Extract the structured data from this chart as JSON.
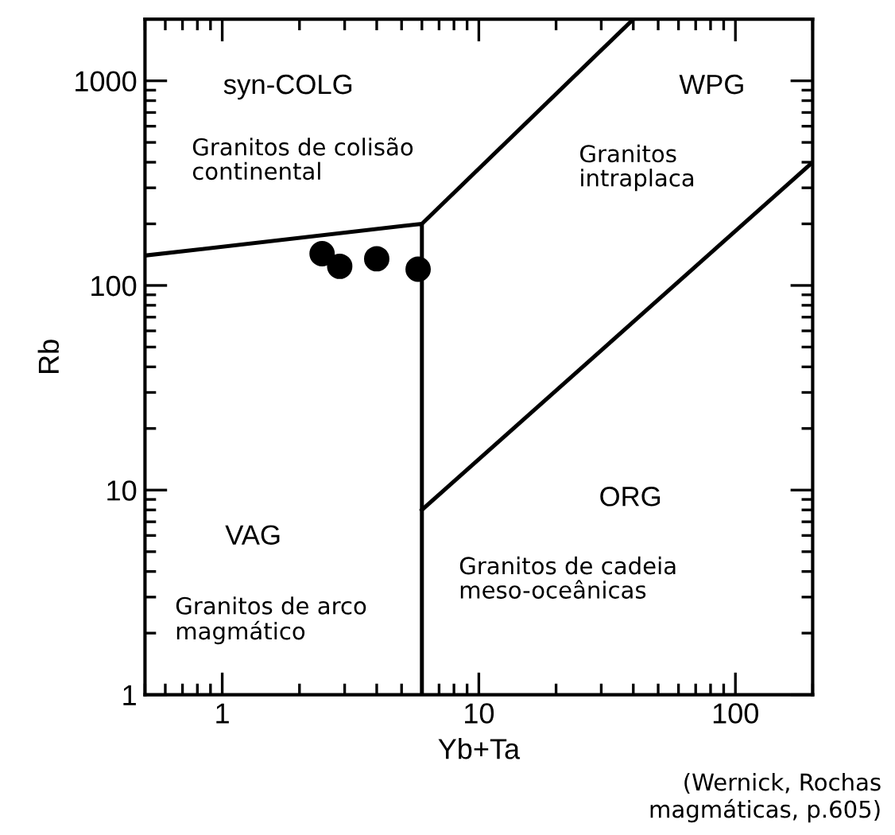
{
  "chart_data": {
    "type": "line",
    "xlabel": "Yb+Ta",
    "ylabel": "Rb",
    "log": "xy",
    "xlim": [
      0.5,
      200
    ],
    "ylim": [
      1,
      2000
    ],
    "xticks": [
      1,
      10,
      100
    ],
    "yticks": [
      1,
      10,
      100,
      1000
    ],
    "grid": false,
    "series": [
      {
        "type": "scatter",
        "marker": "circle",
        "color": "#000000",
        "x": [
          2.45,
          2.87,
          4.0,
          5.8
        ],
        "values": [
          143,
          124,
          135,
          120
        ]
      },
      {
        "color": "#000000",
        "x": [
          0.5,
          6,
          6
        ],
        "values": [
          140,
          200,
          1
        ]
      },
      {
        "color": "#000000",
        "x": [
          6,
          40
        ],
        "values": [
          200,
          2000
        ]
      },
      {
        "color": "#000000",
        "x": [
          6,
          200
        ],
        "values": [
          8,
          400
        ]
      }
    ],
    "annotations": [
      "syn-COLG",
      "Granitos de colisão\ncontinental",
      "WPG",
      "Granitos\nintraplaca",
      "VAG",
      "Granitos de arco\nmagmático",
      "ORG",
      "Granitos de cadeia\nmeso-oceânicas",
      "(Wernick, Rochas\nmagmáticas, p.605)"
    ]
  }
}
